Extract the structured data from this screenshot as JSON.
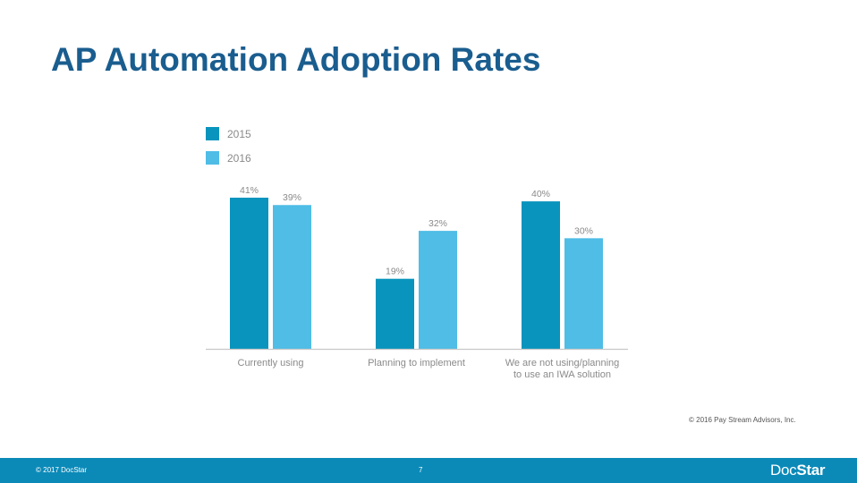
{
  "slide": {
    "title": "AP Automation Adoption Rates",
    "source_credit": "© 2016 Pay Stream Advisors, Inc."
  },
  "footer": {
    "copyright": "© 2017 DocStar",
    "page_number": "7",
    "logo_part1": "Doc",
    "logo_part2": "Star"
  },
  "colors": {
    "series_2015": "#0894bd",
    "series_2016": "#4fbde6",
    "footer_bg": "#0b8ab8",
    "title": "#1a5d8f",
    "axis": "#c8c8c8",
    "label": "#8a8a8a"
  },
  "chart_data": {
    "type": "bar",
    "title": "",
    "xlabel": "",
    "ylabel": "",
    "ylim": [
      0,
      41
    ],
    "categories": [
      [
        "Currently using"
      ],
      [
        "Planning to implement"
      ],
      [
        "We are not using/planning",
        "to use an IWA solution"
      ]
    ],
    "series": [
      {
        "name": "2015",
        "values": [
          41,
          19,
          40
        ],
        "labels": [
          "41%",
          "19%",
          "40%"
        ]
      },
      {
        "name": "2016",
        "values": [
          39,
          32,
          30
        ],
        "labels": [
          "39%",
          "32%",
          "30%"
        ]
      }
    ],
    "legend_position": "top-left"
  }
}
